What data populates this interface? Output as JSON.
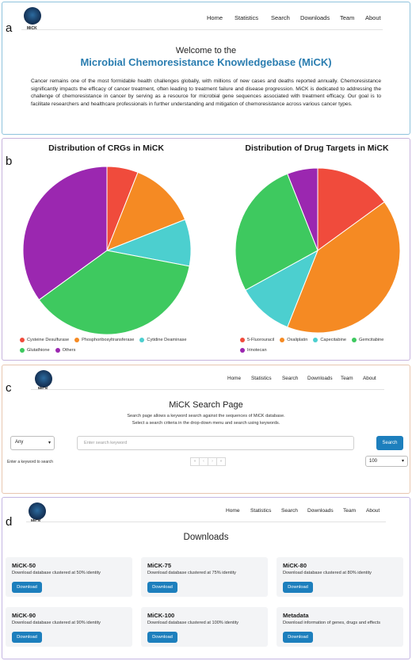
{
  "panels": {
    "a": "a",
    "b": "b",
    "c": "c",
    "d": "d"
  },
  "logo_text": "MiCK",
  "nav": [
    "Home",
    "Statistics",
    "Search",
    "Downloads",
    "Team",
    "About"
  ],
  "home": {
    "welcome": "Welcome to the",
    "title": "Microbial Chemoresistance Knowledgebase (MiCK)",
    "intro": "Cancer remains one of the most formidable health challenges globally, with millions of new cases and deaths reported annually. Chemoresistance significantly impacts the efficacy of cancer treatment, often leading to treatment failure and disease progression. MiCK is dedicated to addressing the challenge of chemoresistance in cancer by serving as a resource for microbial gene sequences associated with treatment efficacy. Our goal is to facilitate researchers and healthcare professionals in further understanding and mitigation of chemoresistance across various cancer types."
  },
  "chart_data": [
    {
      "type": "pie",
      "title": "Distribution of CRGs in MiCK",
      "categories": [
        "Cysteine Desulfurase",
        "Phosphoribosyltransferase",
        "Cytidine Deaminase",
        "Glutathione",
        "Others"
      ],
      "values": [
        6,
        13,
        9,
        37,
        35
      ],
      "colors": [
        "#f04b3c",
        "#f58a23",
        "#4ccfcf",
        "#3ec95f",
        "#9b27b0"
      ]
    },
    {
      "type": "pie",
      "title": "Distribution of Drug Targets in MiCK",
      "categories": [
        "5-Fluorouracil",
        "Oxaliplatin",
        "Capecitabine",
        "Gemcitabine",
        "Irinotecan"
      ],
      "values": [
        15,
        41,
        11,
        27,
        6
      ],
      "colors": [
        "#f04b3c",
        "#f58a23",
        "#4ccfcf",
        "#3ec95f",
        "#9b27b0"
      ]
    }
  ],
  "search": {
    "heading": "MiCK Search Page",
    "desc_line1": "Search page allows a keyword search against the sequences of MiCK database.",
    "desc_line2": "Select a search criteria in the drop-down menu and search using keywords.",
    "select_value": "Any",
    "placeholder": "Enter search keyword",
    "button": "Search",
    "hint": "Enter a keyword to search",
    "pager": [
      "«",
      "‹",
      "›",
      "»"
    ],
    "page_size": "100"
  },
  "downloads": {
    "heading": "Downloads",
    "button_label": "Download",
    "cards": [
      {
        "title": "MiCK-50",
        "desc": "Download database clustered at 50% identity"
      },
      {
        "title": "MiCK-75",
        "desc": "Download database clustered at 75% identity"
      },
      {
        "title": "MiCK-80",
        "desc": "Download database clustered at 80% identity"
      },
      {
        "title": "MiCK-90",
        "desc": "Download database clustered at 90% identity"
      },
      {
        "title": "MiCK-100",
        "desc": "Download database clustered at 100% identity"
      },
      {
        "title": "Metadata",
        "desc": "Download information of genes, drugs and effects"
      }
    ]
  }
}
